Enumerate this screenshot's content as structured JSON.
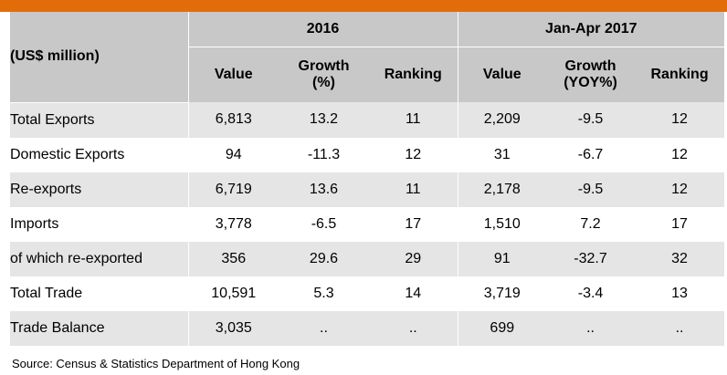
{
  "header": {
    "unit": "(US$ million)",
    "period_1": "2016",
    "period_2": "Jan-Apr 2017",
    "columns": [
      {
        "line1": "Value",
        "line2": ""
      },
      {
        "line1": "Growth",
        "line2": "(%)"
      },
      {
        "line1": "Ranking",
        "line2": ""
      },
      {
        "line1": "Value",
        "line2": ""
      },
      {
        "line1": "Growth",
        "line2": "(YOY%)"
      },
      {
        "line1": "Ranking",
        "line2": ""
      }
    ]
  },
  "rows": [
    {
      "label": "Total Exports",
      "cells": [
        "6,813",
        "13.2",
        "11",
        "2,209",
        "-9.5",
        "12"
      ]
    },
    {
      "label": "Domestic Exports",
      "cells": [
        "94",
        "-11.3",
        "12",
        "31",
        "-6.7",
        "12"
      ]
    },
    {
      "label": "Re-exports",
      "cells": [
        "6,719",
        "13.6",
        "11",
        "2,178",
        "-9.5",
        "12"
      ]
    },
    {
      "label": "Imports",
      "cells": [
        "3,778",
        "-6.5",
        "17",
        "1,510",
        "7.2",
        "17"
      ]
    },
    {
      "label": "of which re-exported",
      "cells": [
        "356",
        "29.6",
        "29",
        "91",
        "-32.7",
        "32"
      ]
    },
    {
      "label": "Total Trade",
      "cells": [
        "10,591",
        "5.3",
        "14",
        "3,719",
        "-3.4",
        "13"
      ]
    },
    {
      "label": "Trade Balance",
      "cells": [
        "3,035",
        "..",
        "..",
        "699",
        "..",
        ".."
      ]
    }
  ],
  "source": "Source: Census & Statistics Department of Hong Kong",
  "colors": {
    "accent_bar": "#e36c0a",
    "header_bg": "#c8c8c8",
    "stripe_bg": "#e5e5e5"
  }
}
